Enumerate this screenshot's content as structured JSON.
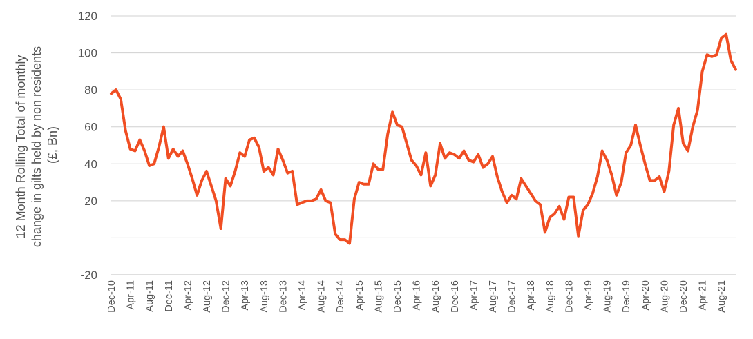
{
  "chart_data": {
    "type": "line",
    "title": "",
    "xlabel": "",
    "ylabel": "12 Month Rolling Total of monthly change in gilts held by non residents (£, Bn)",
    "ylabel_lines": [
      "12 Month Rolling Total of monthly",
      "change in gilts held by non residents",
      "(£, Bn)"
    ],
    "ylim": [
      -20,
      120
    ],
    "yticks": [
      -20,
      0,
      20,
      40,
      60,
      80,
      100,
      120
    ],
    "ytick_labels": [
      "-20",
      "",
      "20",
      "40",
      "60",
      "80",
      "100",
      "120"
    ],
    "grid": true,
    "legend": "none",
    "line_color": "#f04e23",
    "x_tick_labels": [
      "Dec-10",
      "Apr-11",
      "Aug-11",
      "Dec-11",
      "Apr-12",
      "Aug-12",
      "Dec-12",
      "Apr-13",
      "Aug-13",
      "Dec-13",
      "Apr-14",
      "Aug-14",
      "Dec-14",
      "Apr-15",
      "Aug-15",
      "Dec-15",
      "Apr-16",
      "Aug-16",
      "Dec-16",
      "Apr-17",
      "Aug-17",
      "Dec-17",
      "Apr-18",
      "Aug-18",
      "Dec-18",
      "Apr-19",
      "Aug-19",
      "Dec-19",
      "Apr-20",
      "Aug-20",
      "Dec-20",
      "Apr-21",
      "Aug-21"
    ],
    "x_start": "Dec-10",
    "x_end": "Dec-21",
    "series": [
      {
        "values": [
          78,
          80,
          75,
          58,
          48,
          47,
          53,
          47,
          39,
          40,
          49,
          60,
          43,
          48,
          44,
          47,
          40,
          32,
          23,
          31,
          36,
          28,
          20,
          5,
          32,
          28,
          36,
          46,
          44,
          53,
          54,
          49,
          36,
          38,
          34,
          48,
          42,
          35,
          36,
          18,
          19,
          20,
          20,
          21,
          26,
          20,
          19,
          2,
          -1,
          -1,
          -3,
          21,
          30,
          29,
          29,
          40,
          37,
          37,
          56,
          68,
          61,
          60,
          51,
          42,
          39,
          34,
          46,
          28,
          34,
          51,
          43,
          46,
          45,
          43,
          47,
          42,
          41,
          45,
          38,
          40,
          44,
          33,
          25,
          19,
          23,
          21,
          32,
          28,
          24,
          20,
          18,
          3,
          11,
          13,
          17,
          10,
          22,
          22,
          1,
          15,
          18,
          24,
          33,
          47,
          42,
          34,
          23,
          30,
          46,
          50,
          61,
          50,
          40,
          31,
          31,
          33,
          25,
          36,
          61,
          70,
          51,
          47,
          60,
          69,
          90,
          99,
          98,
          99,
          108,
          110,
          96,
          91
        ]
      }
    ]
  }
}
